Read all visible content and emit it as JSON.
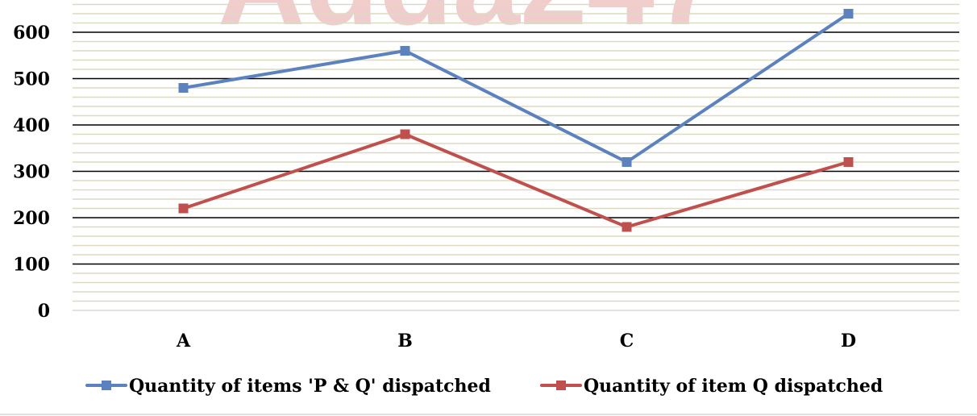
{
  "watermark": "Adda247",
  "chart_data": {
    "type": "line",
    "title": "",
    "xlabel": "",
    "ylabel": "",
    "categories": [
      "A",
      "B",
      "C",
      "D"
    ],
    "ylim": [
      0,
      670
    ],
    "yticks": [
      0,
      100,
      200,
      300,
      400,
      500,
      600
    ],
    "ytick_labels": [
      "0",
      "100",
      "200",
      "300",
      "400",
      "500",
      "600"
    ],
    "minor_grid_step": 20,
    "grid": true,
    "legend_position": "bottom",
    "series": [
      {
        "name": "Quantity of items 'P & Q' dispatched",
        "color": "#5b82bf",
        "values": [
          480,
          560,
          320,
          640
        ]
      },
      {
        "name": "Quantity of item Q dispatched",
        "color": "#c0504d",
        "values": [
          220,
          380,
          180,
          320
        ]
      }
    ]
  }
}
